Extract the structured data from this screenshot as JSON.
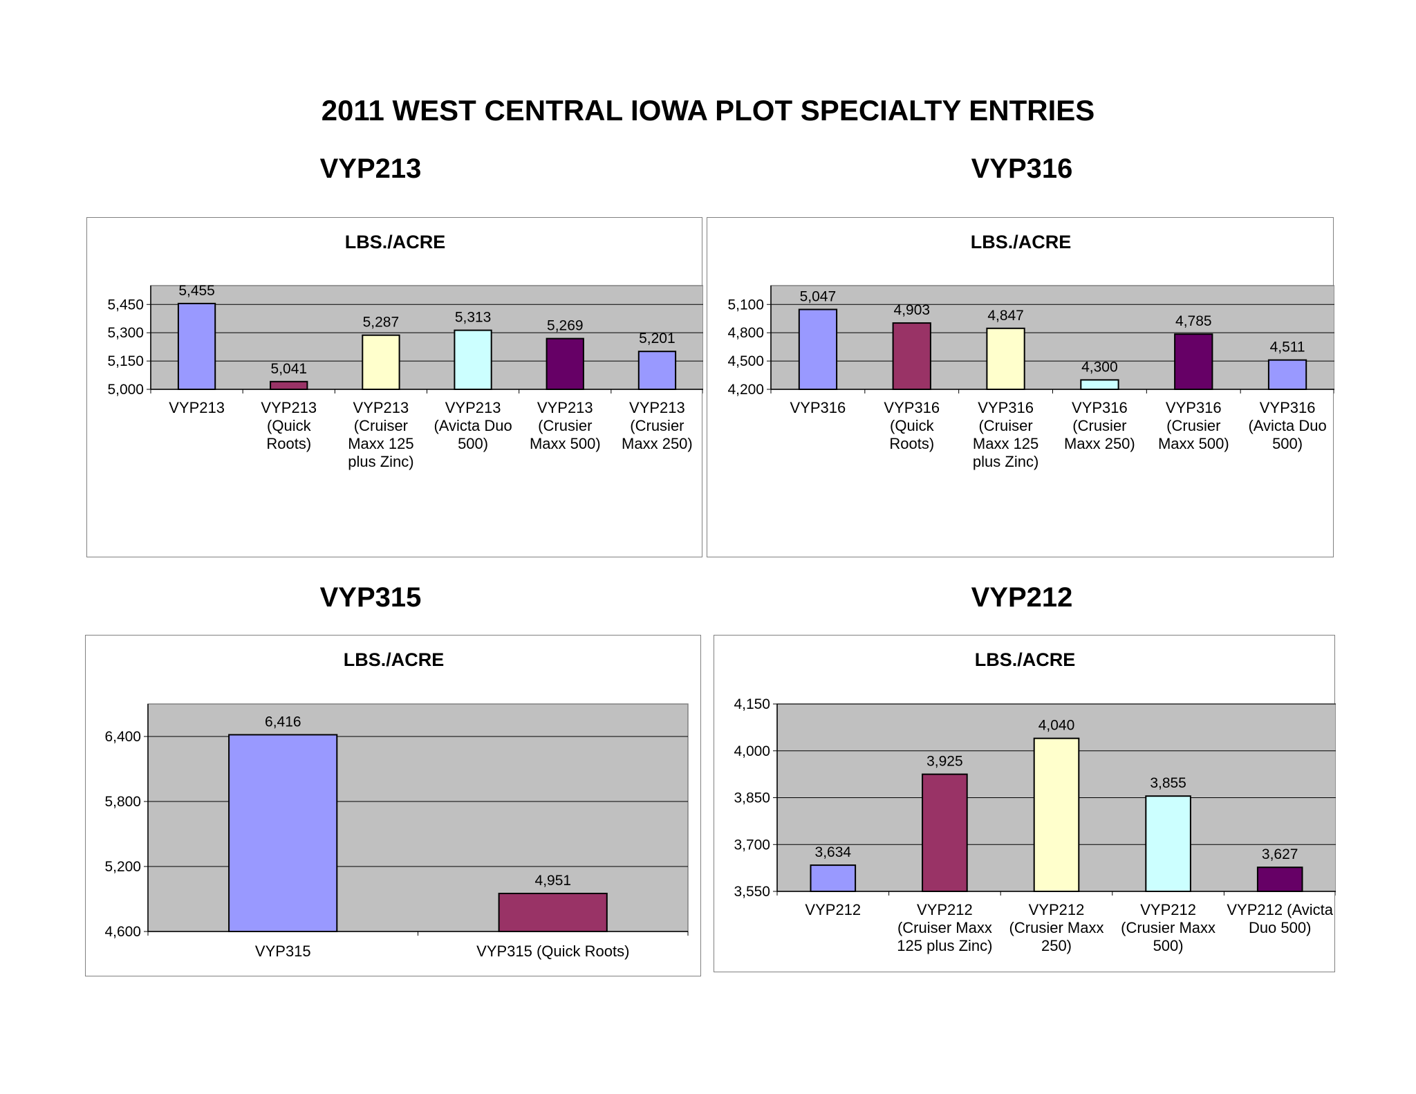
{
  "title": "2011 WEST CENTRAL IOWA PLOT SPECIALTY ENTRIES",
  "colors": {
    "plot_background": "#c0c0c0",
    "gridline": "#808080",
    "bar_outline": "#000000",
    "periwinkle": "#9999ff",
    "plum": "#993366",
    "light_yellow": "#ffffcc",
    "light_cyan": "#ccffff",
    "dark_purple": "#660066"
  },
  "chart_data": [
    {
      "heading": "VYP213",
      "type": "bar",
      "title": "LBS./ACRE",
      "categories": [
        [
          "VYP213"
        ],
        [
          "VYP213",
          "(Quick",
          "Roots)"
        ],
        [
          "VYP213",
          "(Cruiser",
          "Maxx 125",
          "plus Zinc)"
        ],
        [
          "VYP213",
          "(Avicta Duo",
          "500)"
        ],
        [
          "VYP213",
          "(Crusier",
          "Maxx 500)"
        ],
        [
          "VYP213",
          "(Crusier",
          "Maxx 250)"
        ]
      ],
      "values": [
        5455,
        5041,
        5287,
        5313,
        5269,
        5201
      ],
      "value_labels": [
        "5,455",
        "5,041",
        "5,287",
        "5,313",
        "5,269",
        "5,201"
      ],
      "bar_colors": [
        "#9999ff",
        "#993366",
        "#ffffcc",
        "#ccffff",
        "#660066",
        "#9999ff"
      ],
      "ylim": [
        5000,
        5550
      ],
      "yticks": [
        5000,
        5150,
        5300,
        5450
      ],
      "ytick_labels": [
        "5,000",
        "5,150",
        "5,300",
        "5,450"
      ],
      "grid": true,
      "legend": "none"
    },
    {
      "heading": "VYP316",
      "type": "bar",
      "title": "LBS./ACRE",
      "categories": [
        [
          "VYP316"
        ],
        [
          "VYP316",
          "(Quick",
          "Roots)"
        ],
        [
          "VYP316",
          "(Cruiser",
          "Maxx 125",
          "plus Zinc)"
        ],
        [
          "VYP316",
          "(Crusier",
          "Maxx 250)"
        ],
        [
          "VYP316",
          "(Crusier",
          "Maxx 500)"
        ],
        [
          "VYP316",
          "(Avicta Duo",
          "500)"
        ]
      ],
      "values": [
        5047,
        4903,
        4847,
        4300,
        4785,
        4511
      ],
      "value_labels": [
        "5,047",
        "4,903",
        "4,847",
        "4,300",
        "4,785",
        "4,511"
      ],
      "bar_colors": [
        "#9999ff",
        "#993366",
        "#ffffcc",
        "#ccffff",
        "#660066",
        "#9999ff"
      ],
      "ylim": [
        4200,
        5300
      ],
      "yticks": [
        4200,
        4500,
        4800,
        5100
      ],
      "ytick_labels": [
        "4,200",
        "4,500",
        "4,800",
        "5,100"
      ],
      "grid": true,
      "legend": "none"
    },
    {
      "heading": "VYP315",
      "type": "bar",
      "title": "LBS./ACRE",
      "categories": [
        [
          "VYP315"
        ],
        [
          "VYP315 (Quick Roots)"
        ]
      ],
      "values": [
        6416,
        4951
      ],
      "value_labels": [
        "6,416",
        "4,951"
      ],
      "bar_colors": [
        "#9999ff",
        "#993366"
      ],
      "ylim": [
        4600,
        6700
      ],
      "yticks": [
        4600,
        5200,
        5800,
        6400
      ],
      "ytick_labels": [
        "4,600",
        "5,200",
        "5,800",
        "6,400"
      ],
      "grid": true,
      "legend": "none"
    },
    {
      "heading": "VYP212",
      "type": "bar",
      "title": "LBS./ACRE",
      "categories": [
        [
          "VYP212"
        ],
        [
          "VYP212",
          "(Cruiser Maxx",
          "125 plus Zinc)"
        ],
        [
          "VYP212",
          "(Crusier Maxx",
          "250)"
        ],
        [
          "VYP212",
          "(Crusier Maxx",
          "500)"
        ],
        [
          "VYP212 (Avicta",
          "Duo 500)"
        ]
      ],
      "values": [
        3634,
        3925,
        4040,
        3855,
        3627
      ],
      "value_labels": [
        "3,634",
        "3,925",
        "4,040",
        "3,855",
        "3,627"
      ],
      "bar_colors": [
        "#9999ff",
        "#993366",
        "#ffffcc",
        "#ccffff",
        "#660066"
      ],
      "ylim": [
        3550,
        4150
      ],
      "yticks": [
        3550,
        3700,
        3850,
        4000,
        4150
      ],
      "ytick_labels": [
        "3,550",
        "3,700",
        "3,850",
        "4,000",
        "4,150"
      ],
      "grid": true,
      "legend": "none"
    }
  ]
}
